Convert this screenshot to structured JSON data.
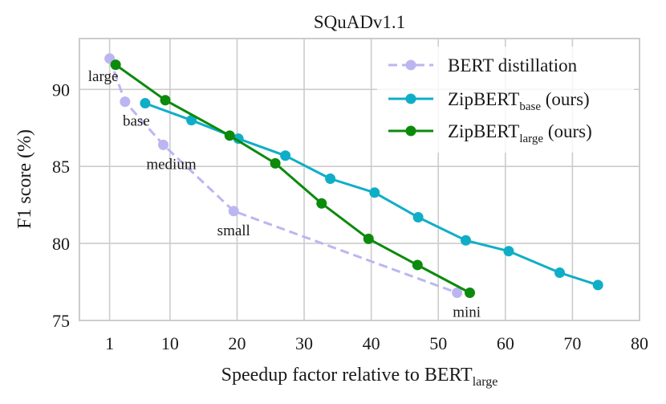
{
  "chart_data": {
    "type": "line",
    "title": "SQuADv1.1",
    "xlabel": "Speedup factor relative to BERT",
    "xlabel_sub": "large",
    "ylabel": "F1 score (%)",
    "xlim": [
      -3.5,
      80
    ],
    "ylim": [
      75,
      93.3
    ],
    "xticks": [
      1,
      10,
      20,
      30,
      40,
      50,
      60,
      70,
      80
    ],
    "yticks": [
      75,
      80,
      85,
      90
    ],
    "grid": true,
    "legend_position": "top-right",
    "series": [
      {
        "name": "BERT distillation",
        "name_main": "BERT distillation",
        "name_sub": "",
        "name_tail": "",
        "color": "#bbb6f2",
        "dashed": true,
        "x": [
          1,
          3.3,
          9,
          19.5,
          52.8
        ],
        "y": [
          92.0,
          89.2,
          86.4,
          82.1,
          76.8
        ],
        "point_labels": [
          "large",
          "base",
          "medium",
          "small",
          "mini"
        ]
      },
      {
        "name": "ZipBERT base (ours)",
        "name_main": "ZipBERT",
        "name_sub": "base",
        "name_tail": " (ours)",
        "color": "#0faec7",
        "dashed": false,
        "x": [
          6.3,
          13.2,
          20.2,
          27.2,
          33.9,
          40.5,
          47.0,
          54.1,
          60.5,
          68.1,
          73.8
        ],
        "y": [
          89.1,
          88.0,
          86.8,
          85.7,
          84.2,
          83.3,
          81.7,
          80.2,
          79.5,
          78.1,
          77.3
        ]
      },
      {
        "name": "ZipBERT large (ours)",
        "name_main": "ZipBERT",
        "name_sub": "large",
        "name_tail": " (ours)",
        "color": "#0c8a0c",
        "dashed": false,
        "x": [
          1.9,
          9.3,
          18.9,
          25.7,
          32.6,
          39.6,
          46.9,
          54.7
        ],
        "y": [
          91.6,
          89.3,
          87.0,
          85.2,
          82.6,
          80.3,
          78.6,
          76.8
        ]
      }
    ]
  }
}
